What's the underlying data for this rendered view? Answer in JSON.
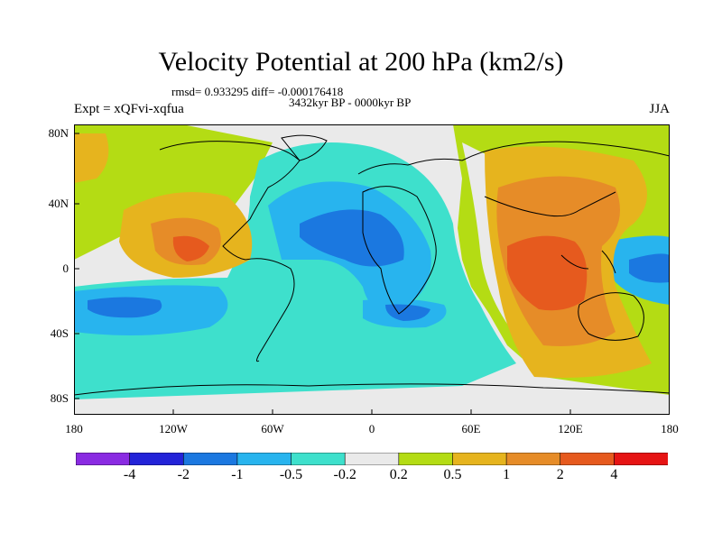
{
  "title": "Velocity Potential at 200 hPa (km2/s)",
  "stats": "rmsd= 0.933295 diff= -0.000176418",
  "period": "3432kyr BP - 0000kyr BP",
  "experiment": "Expt = xQFvi-xqfua",
  "season": "JJA",
  "lat_labels": [
    "80N",
    "40N",
    "0",
    "40S",
    "80S"
  ],
  "lon_labels": [
    "180",
    "120W",
    "60W",
    "0",
    "60E",
    "120E",
    "180"
  ],
  "colorbar": {
    "labels": [
      "-4",
      "-2",
      "-1",
      "-0.5",
      "-0.2",
      "0.2",
      "0.5",
      "1",
      "2",
      "4"
    ],
    "colors": [
      "#8a2be2",
      "#2323d8",
      "#1b78e0",
      "#28b4ee",
      "#3ee0cc",
      "#eaeaea",
      "#b4dc14",
      "#e6b41e",
      "#e68c28",
      "#e65a1e",
      "#e61414"
    ]
  },
  "palette": {
    "ocean_strong": "#1b78e0",
    "ocean": "#28b4ee",
    "teal": "#3ee0cc",
    "neutral": "#eaeaea",
    "green": "#b4dc14",
    "amber": "#e6b41e",
    "orange": "#e68c28",
    "red_orange": "#e65a1e"
  }
}
